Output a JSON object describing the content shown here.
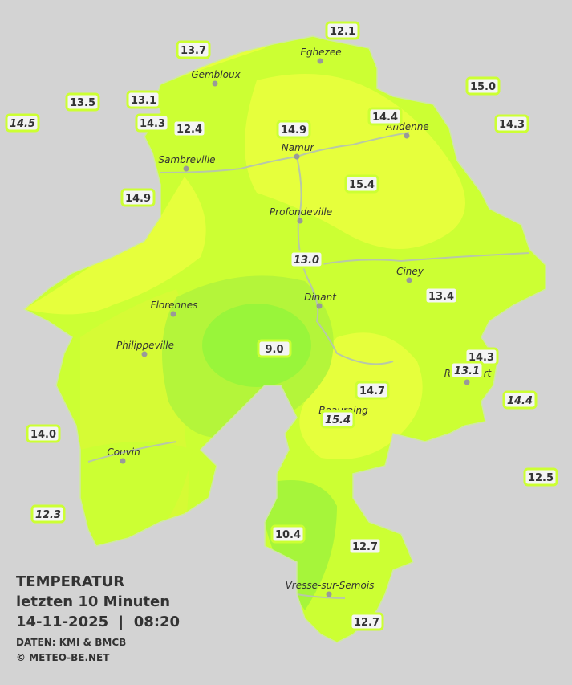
{
  "legend": {
    "title": "TEMPERATUR",
    "period": "letzten 10 Minuten",
    "datetime": "14-11-2025  |  08:20",
    "source": "DATEN: KMI & BMCB",
    "copyright": "© METEO-BE.NET"
  },
  "cities": [
    "Eghezee",
    "Gembloux",
    "Andenne",
    "Namur",
    "Sambreville",
    "Profondeville",
    "Ciney",
    "Dinant",
    "Florennes",
    "Philippeville",
    "Rochefort",
    "Beauraing",
    "Couvin",
    "Vresse-sur-Semois"
  ],
  "stations": [
    {
      "value": "12.1"
    },
    {
      "value": "13.7"
    },
    {
      "value": "15.0"
    },
    {
      "value": "13.5"
    },
    {
      "value": "13.1"
    },
    {
      "value": "14.5",
      "italic": true
    },
    {
      "value": "14.3"
    },
    {
      "value": "12.4"
    },
    {
      "value": "14.4"
    },
    {
      "value": "14.9"
    },
    {
      "value": "14.3"
    },
    {
      "value": "15.4"
    },
    {
      "value": "14.9"
    },
    {
      "value": "13.0",
      "italic": true
    },
    {
      "value": "13.4"
    },
    {
      "value": "9.0"
    },
    {
      "value": "14.3"
    },
    {
      "value": "13.1",
      "italic": true
    },
    {
      "value": "14.4",
      "italic": true
    },
    {
      "value": "14.7"
    },
    {
      "value": "15.4",
      "italic": true
    },
    {
      "value": "14.0"
    },
    {
      "value": "12.5"
    },
    {
      "value": "12.3",
      "italic": true
    },
    {
      "value": "10.4"
    },
    {
      "value": "12.7"
    },
    {
      "value": "12.7"
    }
  ]
}
